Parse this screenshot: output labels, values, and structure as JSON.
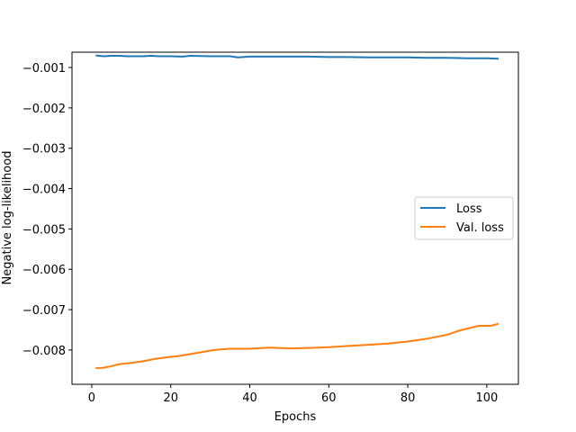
{
  "chart_data": {
    "type": "line",
    "xlabel": "Epochs",
    "ylabel": "Negative log-likelihood",
    "xlim": [
      -5,
      108
    ],
    "ylim": [
      -0.00885,
      -0.00062
    ],
    "xticks": [
      0,
      20,
      40,
      60,
      80,
      100
    ],
    "yticks": [
      -0.008,
      -0.007,
      -0.006,
      -0.005,
      -0.004,
      -0.003,
      -0.002,
      -0.001
    ],
    "ytick_labels": [
      "−0.008",
      "−0.007",
      "−0.006",
      "−0.005",
      "−0.004",
      "−0.003",
      "−0.002",
      "−0.001"
    ],
    "legend_position": "center-right",
    "grid": false,
    "series": [
      {
        "name": "Loss",
        "color": "#1f77b4",
        "x": [
          1,
          3,
          5,
          7,
          9,
          11,
          13,
          15,
          17,
          20,
          23,
          25,
          30,
          35,
          37,
          40,
          45,
          50,
          55,
          60,
          65,
          70,
          75,
          80,
          85,
          90,
          95,
          100,
          103
        ],
        "values": [
          -0.0007,
          -0.00072,
          -0.00071,
          -0.00071,
          -0.00072,
          -0.00072,
          -0.00072,
          -0.00071,
          -0.00072,
          -0.00072,
          -0.00073,
          -0.00071,
          -0.00072,
          -0.00072,
          -0.00075,
          -0.00073,
          -0.00073,
          -0.00073,
          -0.00073,
          -0.00074,
          -0.00074,
          -0.00075,
          -0.00075,
          -0.00075,
          -0.00076,
          -0.00076,
          -0.00077,
          -0.00077,
          -0.00078
        ]
      },
      {
        "name": "Val. loss",
        "color": "#ff7f0e",
        "x": [
          1,
          3,
          5,
          7,
          10,
          13,
          16,
          19,
          22,
          25,
          28,
          31,
          35,
          40,
          45,
          50,
          55,
          60,
          65,
          70,
          75,
          80,
          85,
          90,
          93,
          96,
          98,
          101,
          103
        ],
        "values": [
          -0.00845,
          -0.00844,
          -0.0084,
          -0.00835,
          -0.00832,
          -0.00828,
          -0.00822,
          -0.00818,
          -0.00815,
          -0.0081,
          -0.00805,
          -0.008,
          -0.00797,
          -0.00797,
          -0.00794,
          -0.00796,
          -0.00795,
          -0.00793,
          -0.0079,
          -0.00787,
          -0.00784,
          -0.00779,
          -0.00772,
          -0.00762,
          -0.00752,
          -0.00745,
          -0.0074,
          -0.0074,
          -0.00735
        ]
      }
    ]
  }
}
